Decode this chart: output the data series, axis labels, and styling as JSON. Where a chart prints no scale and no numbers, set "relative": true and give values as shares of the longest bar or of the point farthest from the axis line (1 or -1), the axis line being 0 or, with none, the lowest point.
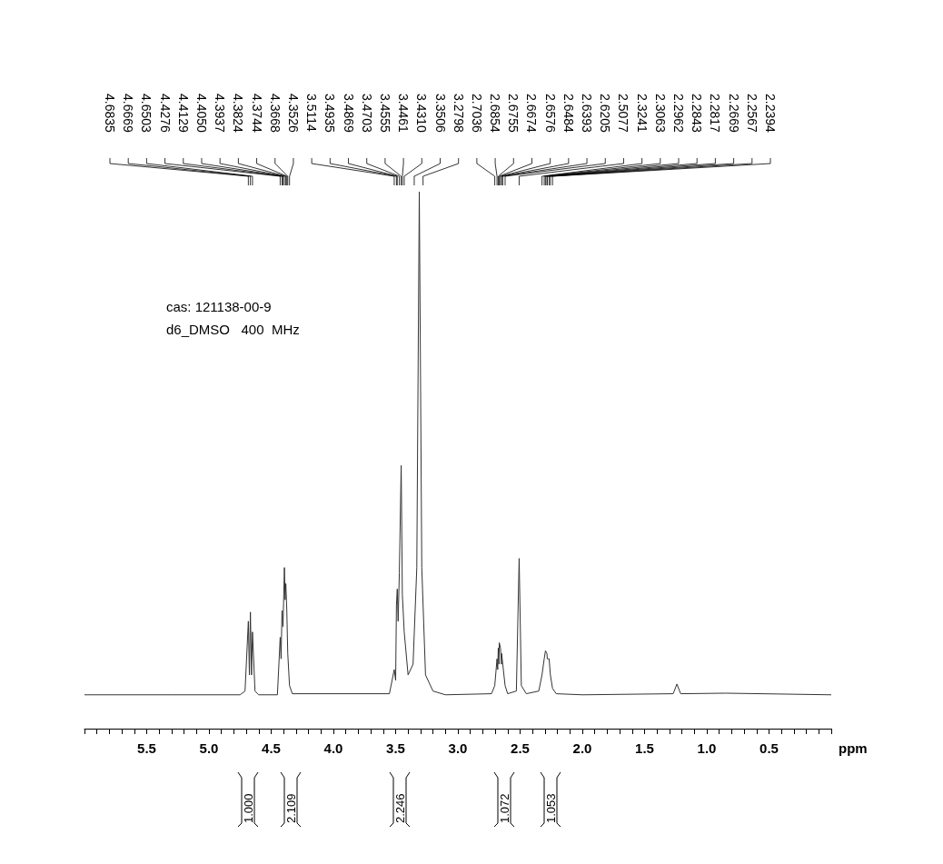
{
  "chart_data": {
    "type": "line",
    "relative": true,
    "xlabel": "ppm",
    "color": "#333333",
    "grid": false,
    "marker": "none",
    "line_style": "solid",
    "xlim": [
      6.0,
      0.0
    ],
    "xticks": [
      {
        "value": 6.0,
        "label": null
      },
      {
        "value": 5.9,
        "label": null
      },
      {
        "value": 5.8,
        "label": null
      },
      {
        "value": 5.7,
        "label": null
      },
      {
        "value": 5.6,
        "label": null
      },
      5.5,
      {
        "value": 5.4,
        "label": null
      },
      {
        "value": 5.3,
        "label": null
      },
      {
        "value": 5.2,
        "label": null
      },
      {
        "value": 5.1,
        "label": null
      },
      {
        "value": 5.0,
        "label": "5.0"
      },
      {
        "value": 4.9,
        "label": null
      },
      {
        "value": 4.8,
        "label": null
      },
      {
        "value": 4.7,
        "label": null
      },
      {
        "value": 4.6,
        "label": null
      },
      4.5,
      {
        "value": 4.4,
        "label": null
      },
      {
        "value": 4.3,
        "label": null
      },
      {
        "value": 4.2,
        "label": null
      },
      {
        "value": 4.1,
        "label": null
      },
      {
        "value": 4.0,
        "label": "4.0"
      },
      {
        "value": 3.9,
        "label": null
      },
      {
        "value": 3.8,
        "label": null
      },
      {
        "value": 3.7,
        "label": null
      },
      {
        "value": 3.6,
        "label": null
      },
      3.5,
      {
        "value": 3.4,
        "label": null
      },
      {
        "value": 3.3,
        "label": null
      },
      {
        "value": 3.2,
        "label": null
      },
      {
        "value": 3.1,
        "label": null
      },
      {
        "value": 3.0,
        "label": "3.0"
      },
      {
        "value": 2.9,
        "label": null
      },
      {
        "value": 2.8,
        "label": null
      },
      {
        "value": 2.7,
        "label": null
      },
      {
        "value": 2.6,
        "label": null
      },
      2.5,
      {
        "value": 2.4,
        "label": null
      },
      {
        "value": 2.3,
        "label": null
      },
      {
        "value": 2.2,
        "label": null
      },
      {
        "value": 2.1,
        "label": null
      },
      {
        "value": 2.0,
        "label": "2.0"
      },
      {
        "value": 1.9,
        "label": null
      },
      {
        "value": 1.8,
        "label": null
      },
      {
        "value": 1.7,
        "label": null
      },
      {
        "value": 1.6,
        "label": null
      },
      1.5,
      {
        "value": 1.4,
        "label": null
      },
      {
        "value": 1.3,
        "label": null
      },
      {
        "value": 1.2,
        "label": null
      },
      {
        "value": 1.1,
        "label": null
      },
      {
        "value": 1.0,
        "label": "1.0"
      },
      {
        "value": 0.9,
        "label": null
      },
      {
        "value": 0.8,
        "label": null
      },
      {
        "value": 0.7,
        "label": null
      },
      {
        "value": 0.6,
        "label": null
      },
      0.5,
      {
        "value": 0.4,
        "label": null
      },
      {
        "value": 0.3,
        "label": null
      },
      {
        "value": 0.2,
        "label": null
      },
      {
        "value": 0.1,
        "label": null
      },
      {
        "value": 0.0,
        "label": null
      }
    ],
    "x": [
      6.0,
      5.3,
      4.75,
      4.71,
      4.6835,
      4.675,
      4.6669,
      4.658,
      4.6503,
      4.63,
      4.6,
      4.45,
      4.4276,
      4.4205,
      4.4129,
      4.405,
      4.3937,
      4.388,
      4.3824,
      4.3744,
      4.3668,
      4.3526,
      4.33,
      3.55,
      3.5114,
      3.5,
      3.4935,
      3.4869,
      3.48,
      3.4703,
      3.4555,
      3.4461,
      3.431,
      3.4,
      3.36,
      3.33,
      3.31,
      3.29,
      3.26,
      3.2,
      3.1,
      2.73,
      2.7036,
      2.6854,
      2.68,
      2.6755,
      2.67,
      2.6674,
      2.6576,
      2.65,
      2.6484,
      2.6393,
      2.6205,
      2.6,
      2.53,
      2.5077,
      2.49,
      2.45,
      2.35,
      2.3241,
      2.3063,
      2.2962,
      2.2843,
      2.2817,
      2.2669,
      2.2567,
      2.2394,
      2.21,
      2.0,
      1.27,
      1.24,
      1.21,
      0.85,
      0.0
    ],
    "values": [
      0.063,
      0.063,
      0.063,
      0.07,
      0.2,
      0.1,
      0.217,
      0.1,
      0.18,
      0.07,
      0.063,
      0.063,
      0.17,
      0.13,
      0.22,
      0.19,
      0.3,
      0.24,
      0.27,
      0.22,
      0.14,
      0.08,
      0.065,
      0.065,
      0.11,
      0.09,
      0.23,
      0.26,
      0.2,
      0.29,
      0.49,
      0.25,
      0.18,
      0.1,
      0.12,
      0.3,
      1.0,
      0.3,
      0.1,
      0.07,
      0.063,
      0.065,
      0.08,
      0.13,
      0.11,
      0.15,
      0.12,
      0.16,
      0.15,
      0.12,
      0.14,
      0.12,
      0.08,
      0.065,
      0.07,
      0.317,
      0.08,
      0.065,
      0.07,
      0.1,
      0.13,
      0.145,
      0.14,
      0.13,
      0.13,
      0.1,
      0.075,
      0.065,
      0.063,
      0.065,
      0.083,
      0.065,
      0.066,
      0.063
    ],
    "annotations": [
      "cas: 121138-00-9",
      "d6_DMSO   400  MHz",
      "4.6835",
      "4.6669",
      "4.6503",
      "4.4276",
      "4.4129",
      "4.4050",
      "4.3937",
      "4.3824",
      "4.3744",
      "4.3668",
      "4.3526",
      "3.5114",
      "3.4935",
      "3.4869",
      "3.4703",
      "3.4555",
      "3.4461",
      "3.4310",
      "3.3506",
      "3.2798",
      "2.7036",
      "2.6854",
      "2.6755",
      "2.6674",
      "2.6576",
      "2.6484",
      "2.6393",
      "2.6205",
      "2.5077",
      "2.3241",
      "2.3063",
      "2.2962",
      "2.2843",
      "2.2817",
      "2.2669",
      "2.2567",
      "2.2394",
      "1.000",
      "2.109",
      "2.246",
      "1.072",
      "1.053"
    ]
  }
}
